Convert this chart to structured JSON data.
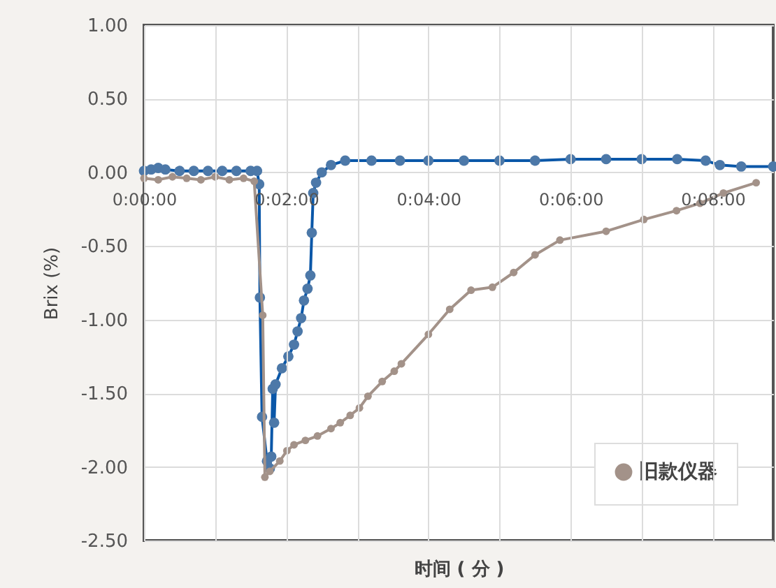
{
  "chart_data": {
    "type": "line",
    "xlabel": "时间 ( 分 )",
    "ylabel": "Brix (%)",
    "xlim": [
      0,
      8.85
    ],
    "xticks": [
      {
        "value": 0,
        "label": "0:00:00"
      },
      {
        "value": 1,
        "label": null
      },
      {
        "value": 2,
        "label": "0:02:00"
      },
      {
        "value": 3,
        "label": null
      },
      {
        "value": 4,
        "label": "0:04:00"
      },
      {
        "value": 5,
        "label": null
      },
      {
        "value": 6,
        "label": "0:06:00"
      },
      {
        "value": 7,
        "label": null
      },
      {
        "value": 8,
        "label": "0:08:00"
      }
    ],
    "ylim": [
      -2.5,
      1.0
    ],
    "yticks": [
      {
        "value": -2.5,
        "label": "-2.50"
      },
      {
        "value": -2,
        "label": "-2.00"
      },
      {
        "value": -1.5,
        "label": "-1.50"
      },
      {
        "value": -1,
        "label": "-1.00"
      },
      {
        "value": -0.5,
        "label": "-0.50"
      },
      {
        "value": 0,
        "label": "0.00"
      },
      {
        "value": 0.5,
        "label": "0.50"
      },
      {
        "value": 1,
        "label": "1.00"
      }
    ],
    "grid": true,
    "legend": "bottom right",
    "marker": "circle",
    "line_style": "solid",
    "series": [
      {
        "color": "#0a57a8",
        "x": [
          0,
          0.1,
          0.2,
          0.3,
          0.5,
          0.7,
          0.9,
          1.1,
          1.3,
          1.5,
          1.59,
          1.62,
          1.63,
          1.66,
          1.73,
          1.77,
          1.79,
          1.81,
          1.83,
          1.85,
          1.94,
          2.03,
          2.11,
          2.16,
          2.21,
          2.25,
          2.3,
          2.34,
          2.36,
          2.38,
          2.42,
          2.5,
          2.63,
          2.83,
          3.2,
          3.6,
          4.0,
          4.5,
          5.0,
          5.5,
          6.0,
          6.5,
          7.0,
          7.5,
          7.9,
          8.1,
          8.4,
          8.85
        ],
        "values": [
          0.01,
          0.02,
          0.03,
          0.02,
          0.01,
          0.01,
          0.01,
          0.01,
          0.01,
          0.01,
          0.01,
          -0.08,
          -0.85,
          -1.66,
          -1.96,
          -2.01,
          -1.93,
          -1.47,
          -1.7,
          -1.44,
          -1.33,
          -1.25,
          -1.17,
          -1.08,
          -0.99,
          -0.87,
          -0.79,
          -0.7,
          -0.41,
          -0.14,
          -0.07,
          0.0,
          0.05,
          0.08,
          0.08,
          0.08,
          0.08,
          0.08,
          0.08,
          0.08,
          0.09,
          0.09,
          0.09,
          0.09,
          0.08,
          0.05,
          0.04,
          0.04
        ]
      },
      {
        "name": "旧款仪器",
        "color": "#a39289",
        "x": [
          0,
          0.2,
          0.4,
          0.6,
          0.8,
          1.0,
          1.2,
          1.4,
          1.55,
          1.67,
          1.7,
          1.77,
          1.91,
          2.01,
          2.11,
          2.27,
          2.44,
          2.63,
          2.76,
          2.9,
          3.03,
          3.15,
          3.35,
          3.52,
          3.62,
          4.0,
          4.3,
          4.6,
          4.9,
          5.2,
          5.5,
          5.85,
          6.5,
          7.03,
          7.49,
          7.82,
          8.15,
          8.61
        ],
        "values": [
          -0.04,
          -0.05,
          -0.03,
          -0.04,
          -0.05,
          -0.03,
          -0.05,
          -0.04,
          -0.06,
          -0.97,
          -2.07,
          -2.03,
          -1.96,
          -1.89,
          -1.85,
          -1.82,
          -1.79,
          -1.74,
          -1.7,
          -1.65,
          -1.6,
          -1.52,
          -1.42,
          -1.35,
          -1.3,
          -1.1,
          -0.93,
          -0.8,
          -0.78,
          -0.68,
          -0.56,
          -0.46,
          -0.4,
          -0.32,
          -0.26,
          -0.21,
          -0.14,
          -0.07
        ]
      }
    ]
  }
}
